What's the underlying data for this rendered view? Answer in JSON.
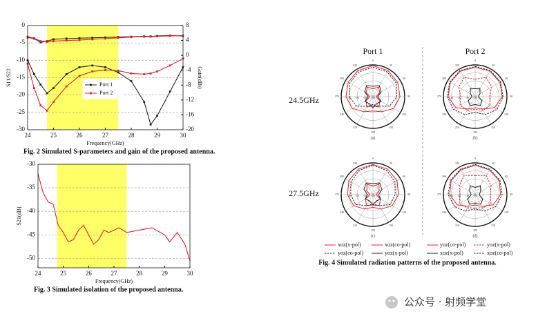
{
  "chart_data": [
    {
      "type": "line",
      "caption": "Fig. 2 Simulated S-parameters and gain of the proposed antenna.",
      "xlabel": "Frequency(GHz)",
      "ylabel": "S11/S22",
      "y2label": "Gain(dBi)",
      "x": [
        24,
        24.25,
        24.5,
        24.75,
        25,
        25.5,
        26,
        26.5,
        27,
        27.5,
        28,
        28.5,
        28.75,
        29,
        29.5,
        30
      ],
      "xlim": [
        24,
        30
      ],
      "xticks": [
        24,
        25,
        26,
        27,
        28,
        29,
        30
      ],
      "ylim": [
        -30,
        0
      ],
      "yticks": [
        -30,
        -25,
        -20,
        -15,
        -10,
        -5,
        0
      ],
      "y2lim": [
        -20,
        8
      ],
      "y2ticks": [
        -20,
        -16,
        -12,
        -8,
        -4,
        0,
        4,
        8
      ],
      "grid": true,
      "highlight": [
        24.75,
        27.5
      ],
      "highlight_color": "#ffff66",
      "legend": "center",
      "series": [
        {
          "name": "Port 1",
          "color": "#222222",
          "marker": "square",
          "values": [
            -10,
            -14,
            -17,
            -19.5,
            -18,
            -14,
            -12,
            -11.5,
            -12,
            -13.5,
            -16,
            -22,
            -28.5,
            -26,
            -19,
            -12
          ]
        },
        {
          "name": "Port 2",
          "color": "#e8202a",
          "marker": "square",
          "values": [
            -11,
            -18,
            -23,
            -24.5,
            -22,
            -17.5,
            -14.5,
            -13.2,
            -12.8,
            -13,
            -13.8,
            -14,
            -13.8,
            -13.2,
            -11.5,
            -9.5
          ]
        },
        {
          "color": "#222222",
          "marker": "square",
          "axis": "y2",
          "values": [
            4.8,
            4.5,
            3.5,
            3.8,
            4.3,
            4.5,
            4.6,
            4.7,
            4.8,
            4.9,
            5,
            5.1,
            5.1,
            5.2,
            5.3,
            5.2
          ]
        },
        {
          "color": "#e8202a",
          "marker": "square",
          "axis": "y2",
          "values": [
            5,
            4.6,
            3.8,
            3.6,
            3.8,
            4,
            4.1,
            4.3,
            4.5,
            4.7,
            4.9,
            5,
            5,
            5.1,
            5.2,
            5.3
          ]
        }
      ]
    },
    {
      "type": "line",
      "caption": "Fig. 3 Simulated isolation of the proposed antenna.",
      "xlabel": "Frequency(GHz)",
      "ylabel": "S21(dB)",
      "x": [
        24,
        24.2,
        24.4,
        24.6,
        24.8,
        25,
        25.2,
        25.4,
        25.6,
        25.8,
        26,
        26.2,
        26.4,
        26.6,
        26.8,
        27,
        27.2,
        27.5,
        28,
        28.5,
        29,
        29.2,
        29.5,
        29.8,
        30
      ],
      "xlim": [
        24,
        30
      ],
      "xticks": [
        24,
        25,
        26,
        27,
        28,
        29,
        30
      ],
      "ylim": [
        -52,
        -30
      ],
      "yticks": [
        -50,
        -45,
        -40,
        -35,
        -30
      ],
      "grid": true,
      "highlight": [
        24.75,
        27.5
      ],
      "highlight_color": "#ffff66",
      "series": [
        {
          "color": "#e8202a",
          "values": [
            -32,
            -36,
            -38,
            -38.5,
            -43,
            -44.5,
            -46.5,
            -46,
            -44,
            -43,
            -45,
            -47,
            -46,
            -44,
            -44.5,
            -44,
            -43.5,
            -44.5,
            -44,
            -43.5,
            -45,
            -46.5,
            -44.5,
            -47,
            -50.5
          ]
        }
      ]
    },
    {
      "type": "polar",
      "label": "(a)",
      "theta": [
        0,
        30,
        60,
        90,
        120,
        150,
        180,
        210,
        240,
        270,
        300,
        330
      ],
      "rlim": [
        -40,
        0
      ],
      "rticks": [
        -40,
        -30,
        -20,
        -10,
        0
      ],
      "series": [
        {
          "color": "#e8202a",
          "values": [
            -30,
            -26,
            -30,
            -36,
            -30,
            -25,
            -28,
            -25,
            -30,
            -36,
            -30,
            -26
          ]
        },
        {
          "color": "#e8202a",
          "values": [
            -1,
            -2,
            -4,
            -6,
            -10,
            -18,
            -22,
            -18,
            -10,
            -6,
            -4,
            -2
          ]
        },
        {
          "color": "#222222",
          "dash": true,
          "values": [
            -3,
            -4,
            -6,
            -10,
            -16,
            -26,
            -30,
            -26,
            -16,
            -10,
            -6,
            -4
          ]
        },
        {
          "color": "#222222",
          "values": [
            -27,
            -24,
            -28,
            -34,
            -28,
            -30,
            -26,
            -30,
            -28,
            -34,
            -28,
            -24
          ]
        }
      ]
    },
    {
      "type": "polar",
      "label": "(b)",
      "theta": [
        0,
        30,
        60,
        90,
        120,
        150,
        180,
        210,
        240,
        270,
        300,
        330
      ],
      "rlim": [
        -40,
        0
      ],
      "rticks": [
        -40,
        -30,
        -20,
        -10,
        0
      ],
      "series": [
        {
          "color": "#e8202a",
          "values": [
            -3,
            -3,
            -4,
            -6,
            -12,
            -22,
            -26,
            -22,
            -12,
            -6,
            -4,
            -3
          ]
        },
        {
          "color": "#e8202a",
          "dash": true,
          "values": [
            -18,
            -12,
            -16,
            -22,
            -18,
            -20,
            -24,
            -20,
            -18,
            -22,
            -16,
            -12
          ]
        },
        {
          "color": "#222222",
          "values": [
            -30,
            -28,
            -33,
            -36,
            -30,
            -27,
            -30,
            -27,
            -30,
            -36,
            -33,
            -28
          ]
        },
        {
          "color": "#222222",
          "dash": true,
          "values": [
            -2,
            -2,
            -3,
            -5,
            -8,
            -14,
            -20,
            -14,
            -8,
            -5,
            -3,
            -2
          ]
        }
      ]
    },
    {
      "type": "polar",
      "label": "(c)",
      "theta": [
        0,
        30,
        60,
        90,
        120,
        150,
        180,
        210,
        240,
        270,
        300,
        330
      ],
      "rlim": [
        -40,
        0
      ],
      "rticks": [
        -40,
        -30,
        -20,
        -10,
        0
      ],
      "series": [
        {
          "name": "xoz(x-pol)",
          "color": "#e8202a",
          "values": [
            -29,
            -25,
            -31,
            -36,
            -29,
            -24,
            -27,
            -24,
            -29,
            -36,
            -31,
            -25
          ]
        },
        {
          "name": "xoz(co-pol)",
          "color": "#e8202a",
          "values": [
            -2,
            -3,
            -5,
            -8,
            -12,
            -19,
            -24,
            -19,
            -12,
            -8,
            -5,
            -3
          ]
        },
        {
          "name": "yoz(co-pol)",
          "color": "#222222",
          "dash": true,
          "values": [
            -3,
            -5,
            -8,
            -12,
            -15,
            -24,
            -28,
            -24,
            -15,
            -12,
            -8,
            -5
          ]
        },
        {
          "name": "yoz(x-pol)",
          "color": "#222222",
          "values": [
            -26,
            -23,
            -27,
            -33,
            -29,
            -31,
            -27,
            -31,
            -29,
            -33,
            -27,
            -23
          ]
        }
      ]
    },
    {
      "type": "polar",
      "label": "(d)",
      "theta": [
        0,
        30,
        60,
        90,
        120,
        150,
        180,
        210,
        240,
        270,
        300,
        330
      ],
      "rlim": [
        -40,
        0
      ],
      "rticks": [
        -40,
        -30,
        -20,
        -10,
        0
      ],
      "series": [
        {
          "name": "yoz(co-pol)",
          "color": "#e8202a",
          "values": [
            -3,
            -4,
            -5,
            -8,
            -14,
            -23,
            -27,
            -23,
            -14,
            -8,
            -5,
            -4
          ]
        },
        {
          "name": "yoz(x-pol)",
          "color": "#e8202a",
          "dash": true,
          "values": [
            -16,
            -12,
            -17,
            -21,
            -17,
            -21,
            -23,
            -21,
            -17,
            -21,
            -17,
            -12
          ]
        },
        {
          "name": "xoz(x-pol)",
          "color": "#222222",
          "values": [
            -31,
            -27,
            -32,
            -35,
            -29,
            -26,
            -29,
            -26,
            -29,
            -35,
            -32,
            -27
          ]
        },
        {
          "name": "xoz(co-pol)",
          "color": "#222222",
          "dash": true,
          "values": [
            -2,
            -3,
            -4,
            -6,
            -10,
            -16,
            -22,
            -16,
            -10,
            -6,
            -4,
            -3
          ]
        }
      ]
    }
  ],
  "figure4": {
    "columns": [
      "Port 1",
      "Port 2"
    ],
    "rows": [
      "24.5GHz",
      "27.5GHz"
    ],
    "caption": "Fig. 4 Simulated radiation patterns of the proposed antenna."
  },
  "watermark": "公众号 · 射频学堂"
}
